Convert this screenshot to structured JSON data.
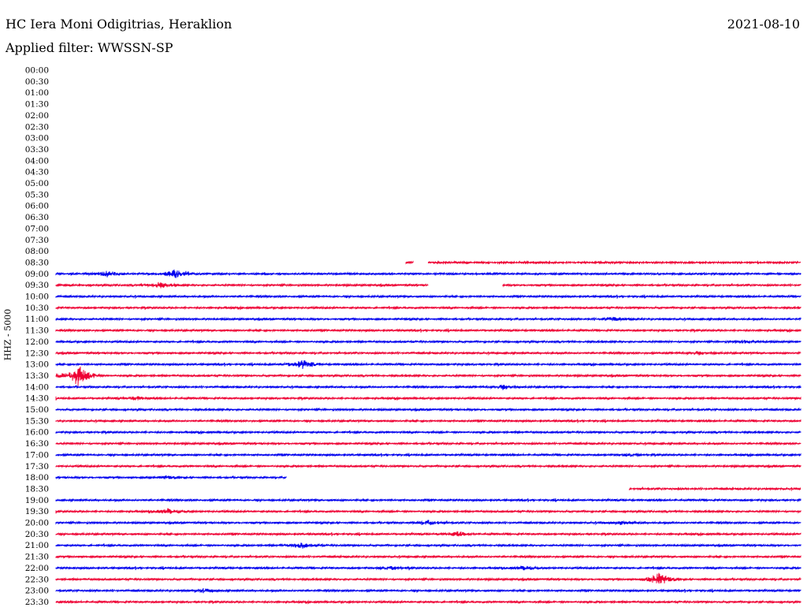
{
  "header": {
    "station": "HC Iera Moni Odigitrias, Heraklion",
    "date": "2021-08-10",
    "filter": "Applied filter: WWSSN-SP"
  },
  "chart_data": {
    "type": "line",
    "title": "HC Iera Moni Odigitrias, Heraklion",
    "subtitle": "Applied filter: WWSSN-SP",
    "ylabel": "HHZ - 5000",
    "row_interval_minutes": 30,
    "colors": {
      "even_rows": "#0000ee",
      "odd_rows": "#ee0033"
    },
    "rows": [
      {
        "label": "00:00",
        "coverage": []
      },
      {
        "label": "00:30",
        "coverage": []
      },
      {
        "label": "01:00",
        "coverage": []
      },
      {
        "label": "01:30",
        "coverage": []
      },
      {
        "label": "02:00",
        "coverage": []
      },
      {
        "label": "02:30",
        "coverage": []
      },
      {
        "label": "03:00",
        "coverage": []
      },
      {
        "label": "03:30",
        "coverage": []
      },
      {
        "label": "04:00",
        "coverage": []
      },
      {
        "label": "04:30",
        "coverage": []
      },
      {
        "label": "05:00",
        "coverage": []
      },
      {
        "label": "05:30",
        "coverage": []
      },
      {
        "label": "06:00",
        "coverage": []
      },
      {
        "label": "06:30",
        "coverage": []
      },
      {
        "label": "07:00",
        "coverage": []
      },
      {
        "label": "07:30",
        "coverage": []
      },
      {
        "label": "08:00",
        "coverage": []
      },
      {
        "label": "08:30",
        "coverage": [
          [
            0.47,
            0.48
          ],
          [
            0.5,
            1.0
          ]
        ]
      },
      {
        "label": "09:00",
        "coverage": [
          [
            0,
            1
          ]
        ],
        "events": [
          [
            0.07,
            0.6
          ],
          [
            0.16,
            0.85
          ]
        ]
      },
      {
        "label": "09:30",
        "coverage": [
          [
            0,
            0.5
          ],
          [
            0.6,
            1.0
          ]
        ],
        "events": [
          [
            0.14,
            0.6
          ]
        ]
      },
      {
        "label": "10:00",
        "coverage": [
          [
            0,
            1
          ]
        ]
      },
      {
        "label": "10:30",
        "coverage": [
          [
            0,
            1
          ]
        ]
      },
      {
        "label": "11:00",
        "coverage": [
          [
            0,
            1
          ]
        ],
        "events": [
          [
            0.75,
            0.35
          ]
        ]
      },
      {
        "label": "11:30",
        "coverage": [
          [
            0,
            1
          ]
        ]
      },
      {
        "label": "12:00",
        "coverage": [
          [
            0,
            1
          ]
        ],
        "events": [
          [
            0.93,
            0.3
          ]
        ]
      },
      {
        "label": "12:30",
        "coverage": [
          [
            0,
            1
          ]
        ],
        "events": [
          [
            0.86,
            0.3
          ]
        ]
      },
      {
        "label": "13:00",
        "coverage": [
          [
            0,
            1
          ]
        ],
        "events": [
          [
            0.33,
            0.9
          ]
        ]
      },
      {
        "label": "13:30",
        "coverage": [
          [
            0,
            1
          ]
        ],
        "events": [
          [
            0.03,
            2.2
          ]
        ]
      },
      {
        "label": "14:00",
        "coverage": [
          [
            0,
            1
          ]
        ],
        "events": [
          [
            0.6,
            0.4
          ]
        ]
      },
      {
        "label": "14:30",
        "coverage": [
          [
            0,
            1
          ]
        ],
        "events": [
          [
            0.11,
            0.35
          ]
        ]
      },
      {
        "label": "15:00",
        "coverage": [
          [
            0,
            1
          ]
        ]
      },
      {
        "label": "15:30",
        "coverage": [
          [
            0,
            1
          ]
        ]
      },
      {
        "label": "16:00",
        "coverage": [
          [
            0,
            1
          ]
        ]
      },
      {
        "label": "16:30",
        "coverage": [
          [
            0,
            1
          ]
        ]
      },
      {
        "label": "17:00",
        "coverage": [
          [
            0,
            1
          ]
        ],
        "events": [
          [
            0.77,
            0.3
          ]
        ]
      },
      {
        "label": "17:30",
        "coverage": [
          [
            0,
            1
          ]
        ]
      },
      {
        "label": "18:00",
        "coverage": [
          [
            0,
            0.31
          ]
        ],
        "events": [
          [
            0.15,
            0.3
          ]
        ]
      },
      {
        "label": "18:30",
        "coverage": [
          [
            0.77,
            1.0
          ]
        ]
      },
      {
        "label": "19:00",
        "coverage": [
          [
            0,
            1
          ]
        ]
      },
      {
        "label": "19:30",
        "coverage": [
          [
            0,
            1
          ]
        ],
        "events": [
          [
            0.15,
            0.5
          ]
        ]
      },
      {
        "label": "20:00",
        "coverage": [
          [
            0,
            1
          ]
        ],
        "events": [
          [
            0.5,
            0.45
          ],
          [
            0.76,
            0.35
          ]
        ]
      },
      {
        "label": "20:30",
        "coverage": [
          [
            0,
            1
          ]
        ],
        "events": [
          [
            0.54,
            0.45
          ]
        ]
      },
      {
        "label": "21:00",
        "coverage": [
          [
            0,
            1
          ]
        ],
        "events": [
          [
            0.33,
            0.6
          ]
        ]
      },
      {
        "label": "21:30",
        "coverage": [
          [
            0,
            1
          ]
        ]
      },
      {
        "label": "22:00",
        "coverage": [
          [
            0,
            1
          ]
        ],
        "events": [
          [
            0.45,
            0.35
          ],
          [
            0.63,
            0.4
          ]
        ]
      },
      {
        "label": "22:30",
        "coverage": [
          [
            0,
            1
          ]
        ],
        "events": [
          [
            0.81,
            1.3
          ]
        ]
      },
      {
        "label": "23:00",
        "coverage": [
          [
            0,
            1
          ]
        ],
        "events": [
          [
            0.2,
            0.35
          ]
        ]
      },
      {
        "label": "23:30",
        "coverage": [
          [
            0,
            1
          ]
        ]
      }
    ]
  }
}
